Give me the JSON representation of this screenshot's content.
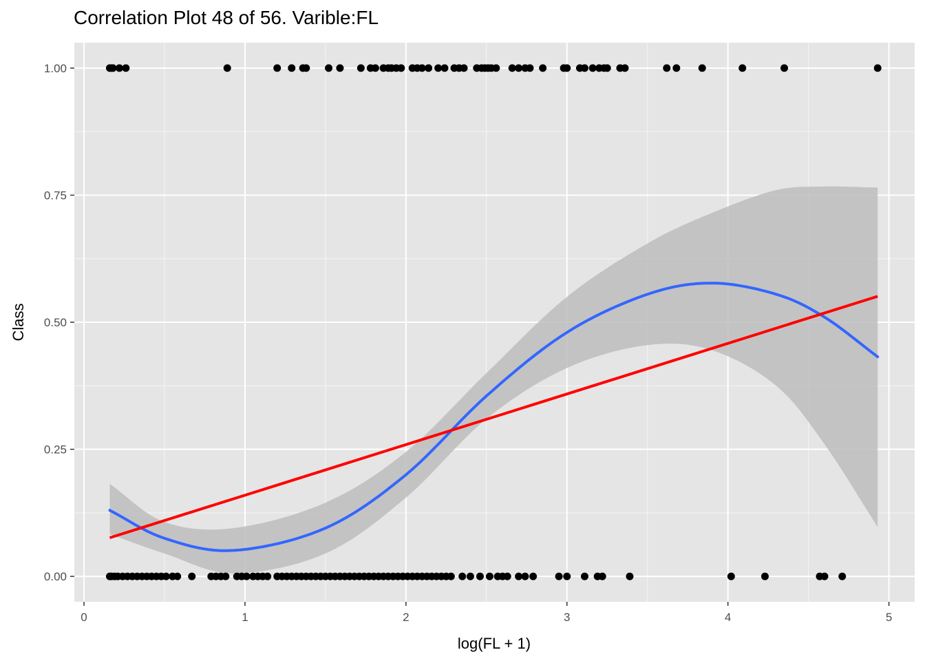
{
  "chart_data": {
    "type": "scatter",
    "title": "Correlation Plot 48 of 56. Varible:FL",
    "xlabel": "log(FL + 1)",
    "ylabel": "Class",
    "xlim": [
      -0.06,
      5.16
    ],
    "ylim": [
      -0.05,
      1.05
    ],
    "x_ticks": [
      0,
      1,
      2,
      3,
      4,
      5
    ],
    "x_tick_labels": [
      "0",
      "1",
      "2",
      "3",
      "4",
      "5"
    ],
    "y_ticks": [
      0,
      0.25,
      0.5,
      0.75,
      1
    ],
    "y_tick_labels": [
      "0.00",
      "0.25",
      "0.50",
      "0.75",
      "1.00"
    ],
    "grid": true,
    "legend": "none",
    "colors": {
      "panel": "#e5e5e5",
      "grid": "#ffffff",
      "points": "#000000",
      "linear_fit": "#ff0000",
      "smooth_fit": "#3366ff",
      "confidence_band": "#bdbdbd"
    },
    "points_class_1": [
      0.16,
      0.17,
      0.18,
      0.22,
      0.26,
      0.89,
      1.2,
      1.29,
      1.36,
      1.38,
      1.52,
      1.59,
      1.72,
      1.78,
      1.81,
      1.86,
      1.89,
      1.91,
      1.94,
      1.97,
      2.04,
      2.07,
      2.1,
      2.14,
      2.2,
      2.24,
      2.3,
      2.33,
      2.36,
      2.44,
      2.47,
      2.49,
      2.51,
      2.53,
      2.56,
      2.66,
      2.7,
      2.74,
      2.77,
      2.85,
      2.98,
      3.0,
      3.08,
      3.11,
      3.16,
      3.2,
      3.23,
      3.25,
      3.33,
      3.36,
      3.62,
      3.68,
      3.84,
      4.09,
      4.35,
      4.93
    ],
    "points_class_0": [
      0.16,
      0.17,
      0.19,
      0.21,
      0.24,
      0.27,
      0.3,
      0.33,
      0.36,
      0.39,
      0.42,
      0.45,
      0.48,
      0.51,
      0.55,
      0.58,
      0.67,
      0.79,
      0.82,
      0.85,
      0.88,
      0.95,
      0.98,
      1.01,
      1.05,
      1.08,
      1.11,
      1.14,
      1.2,
      1.23,
      1.26,
      1.29,
      1.32,
      1.35,
      1.38,
      1.41,
      1.44,
      1.47,
      1.5,
      1.53,
      1.56,
      1.59,
      1.62,
      1.65,
      1.68,
      1.71,
      1.74,
      1.77,
      1.8,
      1.83,
      1.86,
      1.89,
      1.92,
      1.95,
      1.98,
      2.01,
      2.04,
      2.07,
      2.1,
      2.13,
      2.16,
      2.19,
      2.22,
      2.25,
      2.28,
      2.35,
      2.4,
      2.46,
      2.52,
      2.57,
      2.6,
      2.63,
      2.7,
      2.74,
      2.79,
      2.95,
      3.0,
      3.11,
      3.19,
      3.22,
      3.39,
      4.02,
      4.23,
      4.57,
      4.6,
      4.71
    ],
    "series": [
      {
        "type": "line",
        "values_x": [
          0.16,
          4.93
        ],
        "values_y": [
          0.076,
          0.551
        ]
      },
      {
        "type": "smooth",
        "x": [
          0.16,
          0.5,
          0.93,
          1.5,
          2.0,
          2.5,
          3.0,
          3.5,
          3.9,
          4.3,
          4.6,
          4.93
        ],
        "y": [
          0.13,
          0.075,
          0.051,
          0.095,
          0.2,
          0.355,
          0.48,
          0.555,
          0.577,
          0.555,
          0.51,
          0.432
        ],
        "ci_lower": [
          0.083,
          0.045,
          0.006,
          0.045,
          0.155,
          0.31,
          0.41,
          0.455,
          0.445,
          0.375,
          0.26,
          0.097
        ],
        "ci_upper": [
          0.182,
          0.107,
          0.095,
          0.145,
          0.245,
          0.4,
          0.55,
          0.655,
          0.715,
          0.76,
          0.767,
          0.765
        ]
      }
    ]
  }
}
